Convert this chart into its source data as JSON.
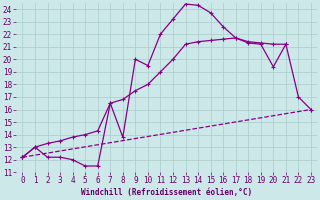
{
  "xlabel": "Windchill (Refroidissement éolien,°C)",
  "background_color": "#cce8e8",
  "grid_color": "#aacccc",
  "line_color": "#880088",
  "xlim": [
    -0.5,
    23.5
  ],
  "ylim": [
    11,
    24.5
  ],
  "xticks": [
    0,
    1,
    2,
    3,
    4,
    5,
    6,
    7,
    8,
    9,
    10,
    11,
    12,
    13,
    14,
    15,
    16,
    17,
    18,
    19,
    20,
    21,
    22,
    23
  ],
  "yticks": [
    11,
    12,
    13,
    14,
    15,
    16,
    17,
    18,
    19,
    20,
    21,
    22,
    23,
    24
  ],
  "line1_x": [
    0,
    1,
    2,
    3,
    4,
    5,
    6,
    7,
    8,
    9,
    10,
    11,
    12,
    13,
    14,
    15,
    16,
    17,
    18,
    19,
    20,
    21,
    22,
    23
  ],
  "line1_y": [
    12.2,
    13.0,
    12.2,
    12.2,
    12.0,
    11.5,
    11.5,
    16.5,
    13.8,
    20.0,
    19.5,
    22.0,
    23.2,
    24.4,
    24.3,
    23.7,
    22.6,
    21.7,
    21.3,
    21.2,
    19.4,
    21.2,
    17.0,
    16.0
  ],
  "line2_x": [
    0,
    1,
    2,
    3,
    4,
    5,
    6,
    7,
    8,
    9,
    10,
    11,
    12,
    13,
    14,
    15,
    16,
    17,
    18,
    19,
    20,
    21
  ],
  "line2_y": [
    12.2,
    13.0,
    13.3,
    13.5,
    13.8,
    14.0,
    14.3,
    16.5,
    16.8,
    17.5,
    18.0,
    19.0,
    20.0,
    21.2,
    21.4,
    21.5,
    21.6,
    21.7,
    21.4,
    21.3,
    21.2,
    21.2
  ],
  "line3_x": [
    0,
    23
  ],
  "line3_y": [
    12.2,
    16.0
  ],
  "marker_size": 3,
  "linewidth": 0.9,
  "tick_fontsize": 5.5,
  "xlabel_fontsize": 5.5
}
